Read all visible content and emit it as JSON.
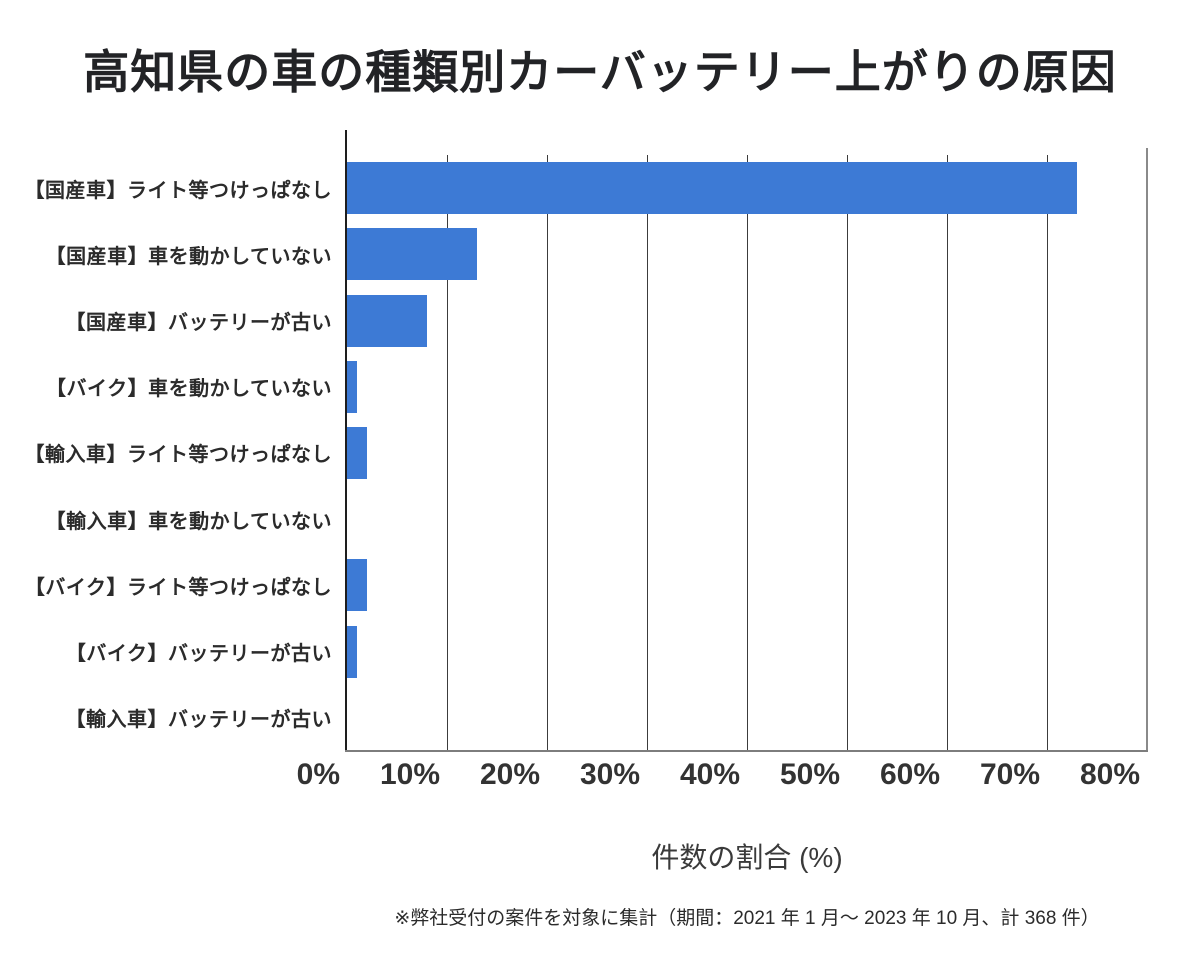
{
  "title": "高知県の車の種類別カーバッテリー上がりの原因",
  "chart_data": {
    "type": "bar",
    "orientation": "horizontal",
    "title": "高知県の車の種類別カーバッテリー上がりの原因",
    "categories": [
      "【国産車】ライト等つけっぱなし",
      "【国産車】車を動かしていない",
      "【国産車】バッテリーが古い",
      "【バイク】車を動かしていない",
      "【輸入車】ライト等つけっぱなし",
      "【輸入車】車を動かしていない",
      "【バイク】ライト等つけっぱなし",
      "【バイク】バッテリーが古い",
      "【輸入車】バッテリーが古い"
    ],
    "values": [
      73,
      13,
      8,
      1,
      2,
      0,
      2,
      1,
      0
    ],
    "xlabel": "件数の割合 (%)",
    "xlim": [
      0,
      80
    ],
    "xticks": [
      "0%",
      "10%",
      "20%",
      "30%",
      "40%",
      "50%",
      "60%",
      "70%",
      "80%"
    ],
    "xtick_values": [
      0,
      10,
      20,
      30,
      40,
      50,
      60,
      70,
      80
    ],
    "grid": "vertical",
    "legend": "none",
    "bar_color": "#3d7ad5"
  },
  "footnote": "※弊社受付の案件を対象に集計（期間：2021 年 1 月～ 2023 年 10 月、計 368 件）"
}
